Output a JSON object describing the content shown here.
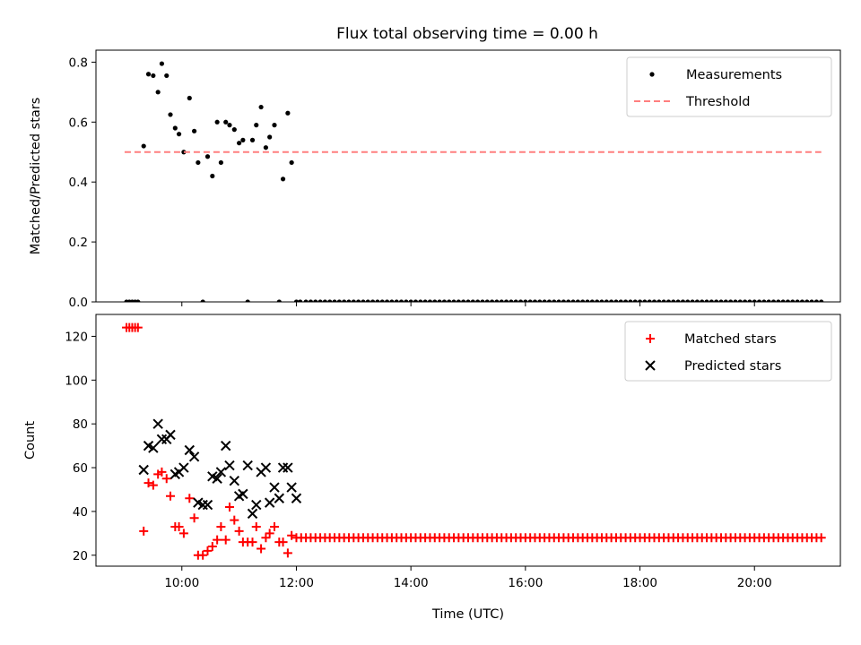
{
  "figure_title": "Flux total observing time = 0.00 h",
  "chart_data": [
    {
      "type": "scatter",
      "title": "",
      "xlabel": "",
      "ylabel": "Matched/Predicted stars",
      "xlim": [
        "08:30",
        "21:30"
      ],
      "ylim": [
        0,
        0.84
      ],
      "yticks": [
        0.0,
        0.2,
        0.4,
        0.6,
        0.8
      ],
      "xticks": [
        "10:00",
        "12:00",
        "14:00",
        "16:00",
        "18:00",
        "20:00"
      ],
      "show_xtick_labels": false,
      "legend": {
        "placement": "upper-right",
        "entries": [
          "Measurements",
          "Threshold"
        ]
      },
      "series": [
        {
          "name": "Measurements",
          "marker": "dot",
          "color": "#000000",
          "x": [
            "09:02",
            "09:05",
            "09:08",
            "09:11",
            "09:14",
            "09:20",
            "09:25",
            "09:30",
            "09:35",
            "09:39",
            "09:44",
            "09:48",
            "09:53",
            "09:57",
            "10:02",
            "10:08",
            "10:13",
            "10:17",
            "10:22",
            "10:27",
            "10:32",
            "10:37",
            "10:41",
            "10:46",
            "10:50",
            "10:55",
            "11:00",
            "11:04",
            "11:09",
            "11:14",
            "11:18",
            "11:23",
            "11:28",
            "11:32",
            "11:37",
            "11:42",
            "11:46",
            "11:51",
            "11:55",
            "12:00",
            "12:04"
          ],
          "y": [
            0.0,
            0.0,
            0.0,
            0.0,
            0.0,
            0.52,
            0.76,
            0.755,
            0.7,
            0.795,
            0.755,
            0.625,
            0.58,
            0.56,
            0.5,
            0.68,
            0.57,
            0.465,
            0.0,
            0.485,
            0.42,
            0.6,
            0.465,
            0.6,
            0.59,
            0.575,
            0.53,
            0.54,
            0.0,
            0.54,
            0.59,
            0.65,
            0.515,
            0.55,
            0.59,
            0.0,
            0.41,
            0.63,
            0.465,
            0.0,
            0.0
          ]
        },
        {
          "name": "Zero readings",
          "marker": "dot",
          "color": "#000000",
          "x_range": [
            "12:10",
            "21:10"
          ],
          "x_step_minutes": 5,
          "y_constant": 0.0
        },
        {
          "name": "Threshold",
          "marker": "dashed-line",
          "color": "#ff7f7f",
          "x": [
            "09:00",
            "21:10"
          ],
          "y": [
            0.5,
            0.5
          ]
        }
      ]
    },
    {
      "type": "scatter",
      "title": "",
      "xlabel": "Time (UTC)",
      "ylabel": "Count",
      "xlim": [
        "08:30",
        "21:30"
      ],
      "ylim": [
        15,
        130
      ],
      "yticks": [
        20,
        40,
        60,
        80,
        100,
        120
      ],
      "xticks": [
        "10:00",
        "12:00",
        "14:00",
        "16:00",
        "18:00",
        "20:00"
      ],
      "legend": {
        "placement": "upper-right",
        "entries": [
          "Matched stars",
          "Predicted stars"
        ]
      },
      "series": [
        {
          "name": "Matched stars",
          "marker": "plus",
          "color": "#ff0000",
          "x": [
            "09:02",
            "09:05",
            "09:08",
            "09:11",
            "09:14",
            "09:20",
            "09:25",
            "09:30",
            "09:35",
            "09:39",
            "09:44",
            "09:48",
            "09:53",
            "09:57",
            "10:02",
            "10:08",
            "10:13",
            "10:17",
            "10:22",
            "10:27",
            "10:32",
            "10:37",
            "10:41",
            "10:46",
            "10:50",
            "10:55",
            "11:00",
            "11:04",
            "11:09",
            "11:14",
            "11:18",
            "11:23",
            "11:28",
            "11:32",
            "11:37",
            "11:42",
            "11:46",
            "11:51",
            "11:55",
            "12:00"
          ],
          "y": [
            124,
            124,
            124,
            124,
            124,
            31,
            53,
            52,
            57,
            58,
            55,
            47,
            33,
            33,
            30,
            46,
            37,
            20,
            20,
            22,
            24,
            27,
            33,
            27,
            42,
            36,
            31,
            26,
            26,
            26,
            33,
            23,
            28,
            30,
            33,
            26,
            26,
            21,
            29,
            28
          ]
        },
        {
          "name": "Matched stars (constant)",
          "marker": "plus",
          "color": "#ff0000",
          "x_range": [
            "12:05",
            "21:10"
          ],
          "x_step_minutes": 5,
          "y_constant": 28
        },
        {
          "name": "Predicted stars",
          "marker": "x",
          "color": "#000000",
          "x": [
            "09:20",
            "09:25",
            "09:30",
            "09:35",
            "09:39",
            "09:44",
            "09:48",
            "09:53",
            "09:57",
            "10:02",
            "10:08",
            "10:13",
            "10:17",
            "10:22",
            "10:27",
            "10:32",
            "10:37",
            "10:41",
            "10:46",
            "10:50",
            "10:55",
            "11:00",
            "11:04",
            "11:09",
            "11:14",
            "11:18",
            "11:23",
            "11:28",
            "11:32",
            "11:37",
            "11:42",
            "11:46",
            "11:51",
            "11:55",
            "12:00"
          ],
          "y": [
            59,
            70,
            69,
            80,
            73,
            73,
            75,
            57,
            58,
            60,
            68,
            65,
            44,
            43,
            43,
            56,
            55,
            58,
            70,
            61,
            54,
            47,
            48,
            61,
            39,
            43,
            58,
            60,
            44,
            51,
            46,
            60,
            60,
            51,
            46
          ]
        }
      ]
    }
  ]
}
